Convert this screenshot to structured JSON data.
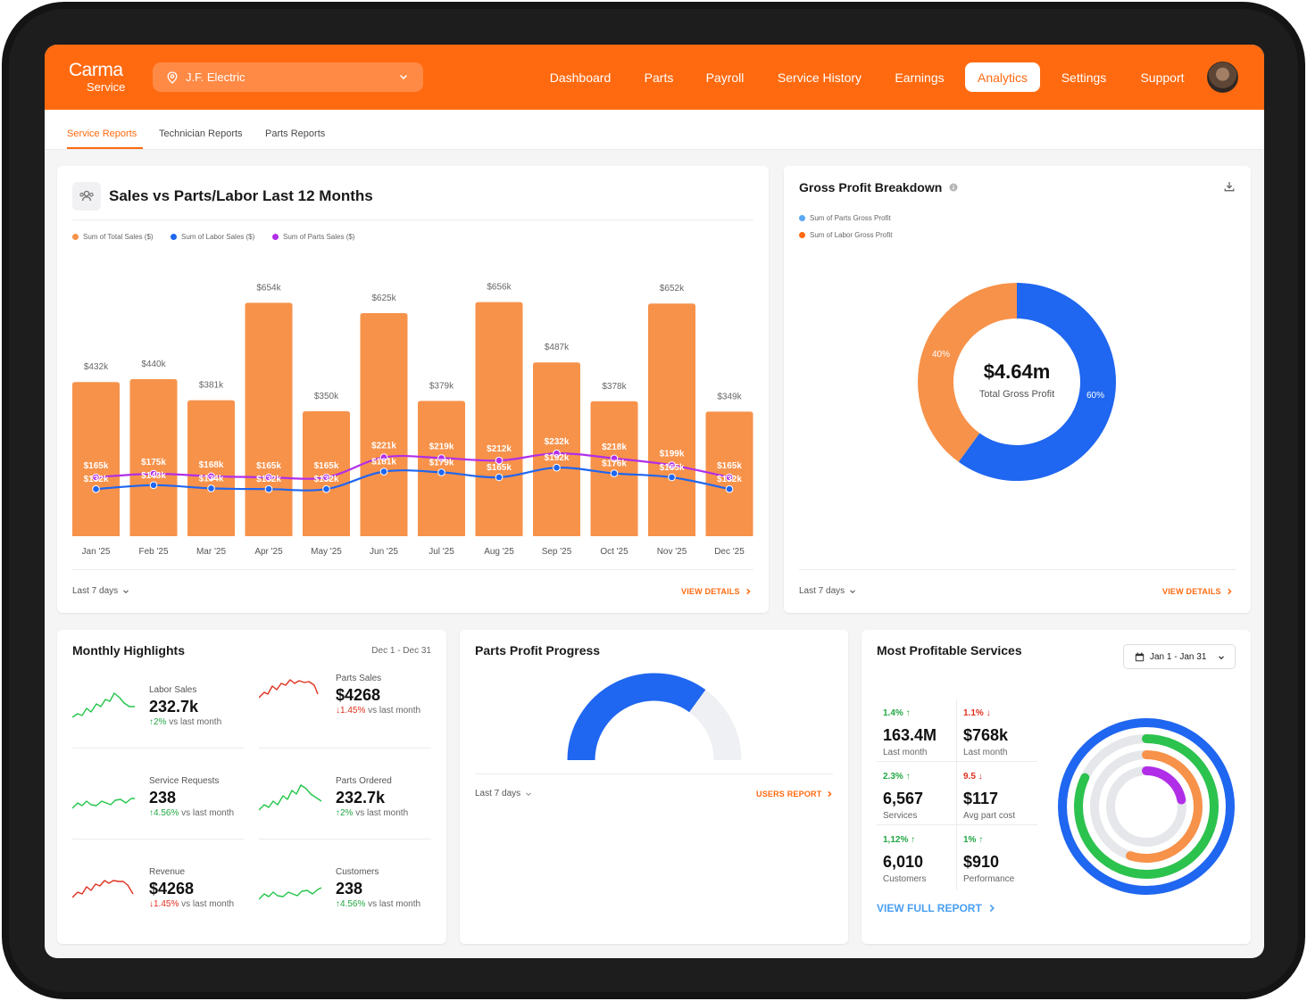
{
  "brand": {
    "name": "Carma",
    "sub": "Service"
  },
  "company_selector": {
    "value": "J.F. Electric"
  },
  "nav": {
    "items": [
      {
        "label": "Dashboard"
      },
      {
        "label": "Parts"
      },
      {
        "label": "Payroll"
      },
      {
        "label": "Service History"
      },
      {
        "label": "Earnings"
      },
      {
        "label": "Analytics",
        "active": true
      },
      {
        "label": "Settings"
      },
      {
        "label": "Support"
      }
    ]
  },
  "subnav": {
    "tabs": [
      "Service Reports",
      "Technician Reports",
      "Parts Reports"
    ],
    "active": "Service Reports"
  },
  "sales_card": {
    "title": "Sales vs Parts/Labor Last 12 Months",
    "range_label": "Last 7 days",
    "view_details": "VIEW DETAILS"
  },
  "gross_profit": {
    "title": "Gross Profit Breakdown",
    "legend": [
      "Sum of Parts Gross Profit",
      "Sum of Labor Gross Profit"
    ],
    "total_value": "$4.64m",
    "total_label": "Total Gross Profit",
    "parts_pct_label": "60%",
    "labor_pct_label": "40%",
    "range_label": "Last 7 days",
    "view_details": "VIEW DETAILS"
  },
  "monthly_highlights": {
    "title": "Monthly Highlights",
    "date_range": "Dec 1 - Dec 31",
    "items": [
      {
        "label": "Labor Sales",
        "value": "232.7k",
        "arrow": "↑",
        "pct": "2%",
        "suffix": " vs last month",
        "trend": "up"
      },
      {
        "label": "Parts Sales",
        "value": "$4268",
        "arrow": "↓",
        "pct": "1.45%",
        "suffix": " vs last month",
        "trend": "down"
      },
      {
        "label": "Service Requests",
        "value": "238",
        "arrow": "↑",
        "pct": "4.56%",
        "suffix": " vs last month",
        "trend": "up"
      },
      {
        "label": "Parts Ordered",
        "value": "232.7k",
        "arrow": "↑",
        "pct": "2%",
        "suffix": " vs last month",
        "trend": "up"
      },
      {
        "label": "Revenue",
        "value": "$4268",
        "arrow": "↓",
        "pct": "1.45%",
        "suffix": " vs last month",
        "trend": "down"
      },
      {
        "label": "Customers",
        "value": "238",
        "arrow": "↑",
        "pct": "4.56%",
        "suffix": " vs last month",
        "trend": "up"
      }
    ]
  },
  "parts_profit": {
    "title": "Parts Profit Progress",
    "progress": 0.7,
    "range_label": "Last 7 days",
    "report_link": "USERS REPORT"
  },
  "most_profitable": {
    "title": "Most Profitable Services",
    "date_range": "Jan 1 - Jan 31",
    "stats": [
      {
        "pct": "1.4% ↑",
        "trend": "up",
        "value": "163.4M",
        "label": "Last month"
      },
      {
        "pct": "1.1% ↓",
        "trend": "down",
        "value": "$768k",
        "label": "Last month"
      },
      {
        "pct": "2.3% ↑",
        "trend": "up",
        "value": "6,567",
        "label": "Services"
      },
      {
        "pct": "9.5 ↓",
        "trend": "down",
        "value": "$117",
        "label": "Avg part cost"
      },
      {
        "pct": "1,12% ↑",
        "trend": "up",
        "value": "6,010",
        "label": "Customers"
      },
      {
        "pct": "1% ↑",
        "trend": "up",
        "value": "$910",
        "label": "Performance"
      }
    ],
    "rings": [
      {
        "name": "blue",
        "color": "#1f66f0",
        "value": 1.0
      },
      {
        "name": "green",
        "color": "#2cc24e",
        "value": 0.82
      },
      {
        "name": "orange",
        "color": "#f7924a",
        "value": 0.55
      },
      {
        "name": "purple",
        "color": "#b12ee8",
        "value": 0.22
      }
    ],
    "report_link": "VIEW FULL REPORT"
  },
  "colors": {
    "brand_orange": "#ff6a10",
    "bar_orange": "#f7924a",
    "labor_blue": "#1f66f0",
    "parts_purple": "#b12ee8",
    "green": "#22a844",
    "red": "#e0301e"
  },
  "chart_data": [
    {
      "type": "bar",
      "title": "Sales vs Parts/Labor Last 12 Months",
      "categories": [
        "Jan '25",
        "Feb '25",
        "Mar '25",
        "Apr '25",
        "May '25",
        "Jun '25",
        "Jul '25",
        "Aug '25",
        "Sep '25",
        "Oct '25",
        "Nov '25",
        "Dec '25"
      ],
      "series": [
        {
          "name": "Sum of Total Sales ($)",
          "type": "bar",
          "color": "#f7924a",
          "values": [
            432,
            440,
            381,
            654,
            350,
            625,
            379,
            656,
            487,
            378,
            652,
            349
          ],
          "labels": [
            "$432k",
            "$440k",
            "$381k",
            "$654k",
            "$350k",
            "$625k",
            "$379k",
            "$656k",
            "$487k",
            "$378k",
            "$652k",
            "$349k"
          ]
        },
        {
          "name": "Sum of Labor Sales ($)",
          "type": "line",
          "color": "#1f66f0",
          "values": [
            132,
            143,
            134,
            132,
            132,
            181,
            179,
            165,
            192,
            176,
            165,
            132
          ],
          "labels": [
            "$132k",
            "$143k",
            "$134k",
            "$132k",
            "$132k",
            "$181k",
            "$179k",
            "$165k",
            "$192k",
            "$176k",
            "$165k",
            "$132k"
          ]
        },
        {
          "name": "Sum of Parts Sales ($)",
          "type": "line",
          "color": "#b12ee8",
          "values": [
            165,
            175,
            168,
            165,
            165,
            221,
            219,
            212,
            232,
            218,
            199,
            165
          ],
          "labels": [
            "$165k",
            "$175k",
            "$168k",
            "$165k",
            "$165k",
            "$221k",
            "$219k",
            "$212k",
            "$232k",
            "$218k",
            "$199k",
            "$165k"
          ]
        }
      ],
      "ylim": [
        0,
        750
      ],
      "unit": "$k"
    },
    {
      "type": "pie",
      "title": "Gross Profit Breakdown",
      "categories": [
        "Sum of Parts Gross Profit",
        "Sum of Labor Gross Profit"
      ],
      "values": [
        60,
        40
      ],
      "colors": [
        "#1f66f0",
        "#f7924a"
      ]
    }
  ]
}
